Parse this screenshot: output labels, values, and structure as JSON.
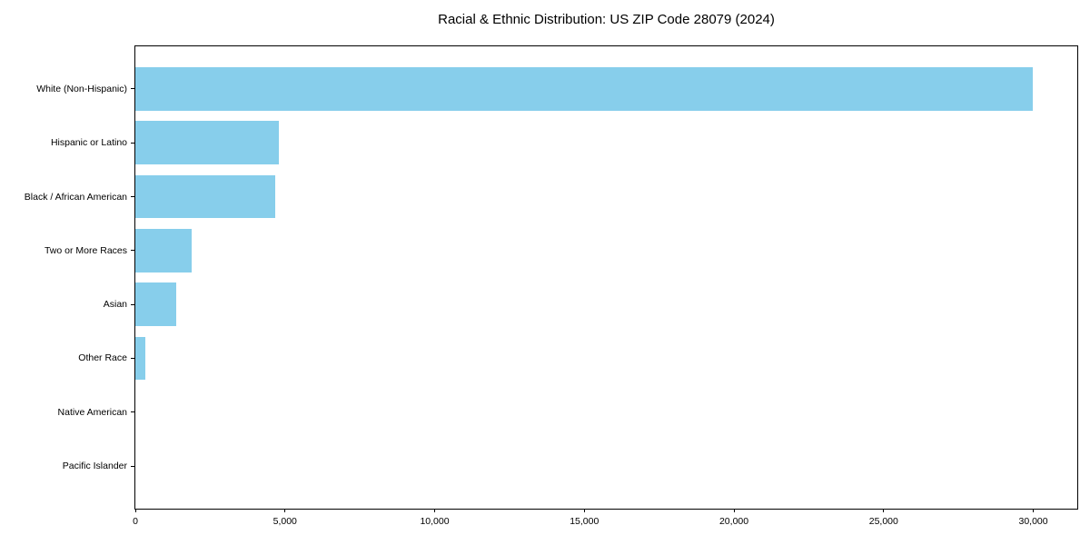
{
  "title": "Racial & Ethnic Distribution: US ZIP Code 28079 (2024)",
  "chart_data": {
    "type": "bar",
    "orientation": "horizontal",
    "title": "Racial & Ethnic Distribution: US ZIP Code 28079 (2024)",
    "categories": [
      "White (Non-Hispanic)",
      "Hispanic or Latino",
      "Black / African American",
      "Two or More Races",
      "Asian",
      "Other Race",
      "Native American",
      "Pacific Islander"
    ],
    "values": [
      29970,
      4780,
      4660,
      1880,
      1360,
      340,
      0,
      0
    ],
    "xlabel": "",
    "ylabel": "",
    "xlim": [
      0,
      31470
    ],
    "xticks": [
      0,
      5000,
      10000,
      15000,
      20000,
      25000,
      30000
    ],
    "xtick_labels": [
      "0",
      "5,000",
      "10,000",
      "15,000",
      "20,000",
      "25,000",
      "30,000"
    ],
    "bar_color": "#87CEEB",
    "background_color": "#ffffff",
    "axis_color": "#000000",
    "grid": false,
    "legend": null
  }
}
